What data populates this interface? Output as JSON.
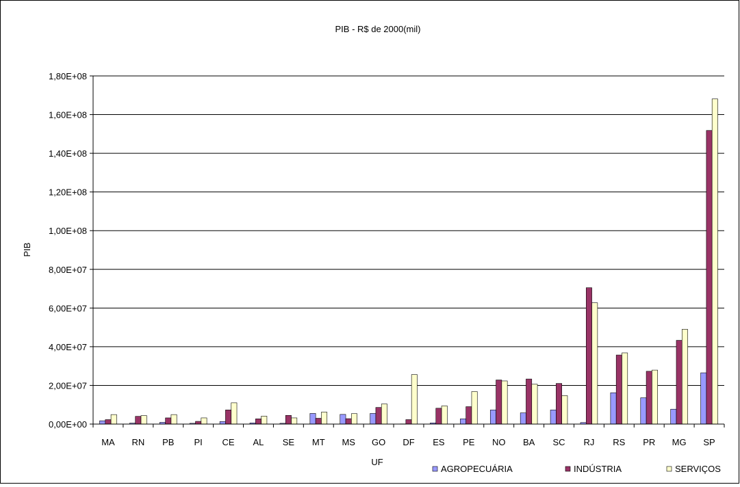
{
  "chart_data": {
    "type": "bar",
    "title": "PIB - R$ de 2000(mil)",
    "xlabel": "UF",
    "ylabel": "PIB",
    "ylim": [
      0,
      180000000
    ],
    "yticks": [
      0,
      20000000,
      40000000,
      60000000,
      80000000,
      100000000,
      120000000,
      140000000,
      160000000,
      180000000
    ],
    "ytick_labels": [
      "0,00E+00",
      "2,00E+07",
      "4,00E+07",
      "6,00E+07",
      "8,00E+07",
      "1,00E+08",
      "1,20E+08",
      "1,40E+08",
      "1,60E+08",
      "1,80E+08"
    ],
    "grid": true,
    "legend_position": "bottom-right",
    "categories": [
      "MA",
      "RN",
      "PB",
      "PI",
      "CE",
      "AL",
      "SE",
      "MT",
      "MS",
      "GO",
      "DF",
      "ES",
      "PE",
      "NO",
      "BA",
      "SC",
      "RJ",
      "RS",
      "PR",
      "MG",
      "SP"
    ],
    "series": [
      {
        "name": "AGROPECUÁRIA",
        "color": "#9999ff",
        "values": [
          1700000,
          500000,
          900000,
          400000,
          1300000,
          600000,
          400000,
          5500000,
          5000000,
          5500000,
          100000,
          600000,
          2700000,
          7300000,
          5800000,
          7300000,
          800000,
          16200000,
          13600000,
          7700000,
          26500000
        ]
      },
      {
        "name": "INDÚSTRIA",
        "color": "#993366",
        "values": [
          2300000,
          4000000,
          3200000,
          1400000,
          7300000,
          2700000,
          4500000,
          3000000,
          2800000,
          8600000,
          2300000,
          8200000,
          9000000,
          22800000,
          23300000,
          21000000,
          70500000,
          35700000,
          27300000,
          43300000,
          151800000
        ]
      },
      {
        "name": "SERVIÇOS",
        "color": "#ffffcc",
        "values": [
          4900000,
          4400000,
          4900000,
          3200000,
          11000000,
          4100000,
          3200000,
          6200000,
          5400000,
          10400000,
          25600000,
          9400000,
          16800000,
          22300000,
          20600000,
          14700000,
          62700000,
          36800000,
          27900000,
          49000000,
          168100000
        ]
      }
    ]
  }
}
